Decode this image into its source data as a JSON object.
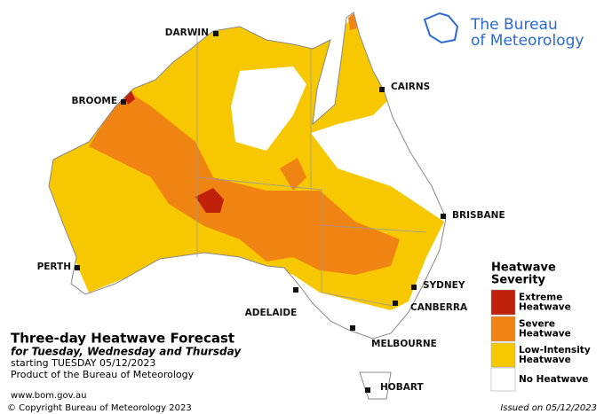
{
  "logo": {
    "lines": [
      "The Bureau",
      "of Meteorology"
    ]
  },
  "cities": [
    "DARWIN",
    "CAIRNS",
    "BROOME",
    "BRISBANE",
    "PERTH",
    "SYDNEY",
    "CANBERRA",
    "ADELAIDE",
    "MELBOURNE",
    "HOBART"
  ],
  "title": "Three-day Heatwave Forecast",
  "subtitle": "for Tuesday, Wednesday and Thursday",
  "starting": "starting TUESDAY 05/12/2023",
  "product": "Product of the Bureau of Meteorology",
  "website": "www.bom.gov.au",
  "copyright": "© Copyright Bureau of Meteorology 2023",
  "issued": "Issued on 05/12/2023",
  "legend": {
    "title": [
      "Heatwave",
      "Severity"
    ],
    "items": [
      {
        "lines": [
          "Extreme",
          "Heatwave"
        ],
        "color": "#c0210a"
      },
      {
        "lines": [
          "Severe",
          "Heatwave"
        ],
        "color": "#f08413"
      },
      {
        "lines": [
          "Low-Intensity",
          "Heatwave"
        ],
        "color": "#f7c800"
      },
      {
        "lines": [
          "No Heatwave"
        ],
        "color": "#ffffff"
      }
    ]
  }
}
